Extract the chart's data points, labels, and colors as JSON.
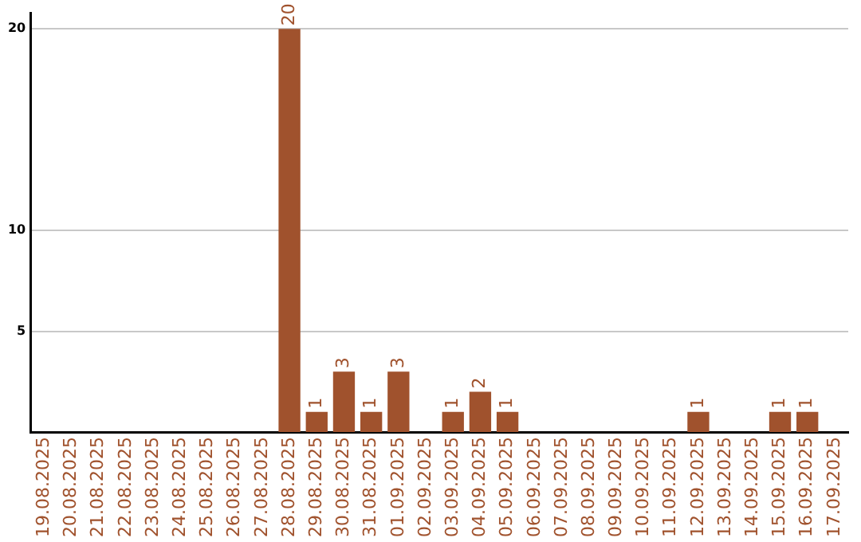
{
  "chart_data": {
    "type": "bar",
    "categories": [
      "19.08.2025",
      "20.08.2025",
      "21.08.2025",
      "22.08.2025",
      "23.08.2025",
      "24.08.2025",
      "25.08.2025",
      "26.08.2025",
      "27.08.2025",
      "28.08.2025",
      "29.08.2025",
      "30.08.2025",
      "31.08.2025",
      "01.09.2025",
      "02.09.2025",
      "03.09.2025",
      "04.09.2025",
      "05.09.2025",
      "06.09.2025",
      "07.09.2025",
      "08.09.2025",
      "09.09.2025",
      "10.09.2025",
      "11.09.2025",
      "12.09.2025",
      "13.09.2025",
      "14.09.2025",
      "15.09.2025",
      "16.09.2025",
      "17.09.2025"
    ],
    "values": [
      0,
      0,
      0,
      0,
      0,
      0,
      0,
      0,
      0,
      20,
      1,
      3,
      1,
      3,
      0,
      1,
      2,
      1,
      0,
      0,
      0,
      0,
      0,
      0,
      1,
      0,
      0,
      1,
      1,
      0
    ],
    "value_labels": [
      null,
      null,
      null,
      null,
      null,
      null,
      null,
      null,
      null,
      "20",
      "1",
      "3",
      "1",
      "3",
      null,
      "1",
      "2",
      "1",
      null,
      null,
      null,
      null,
      null,
      null,
      "1",
      null,
      null,
      "1",
      "1",
      null
    ],
    "color": "#a0522d",
    "ylim": [
      0,
      20.8
    ],
    "yticks": [
      5,
      10,
      20
    ],
    "grid": "y",
    "legend": false
  }
}
